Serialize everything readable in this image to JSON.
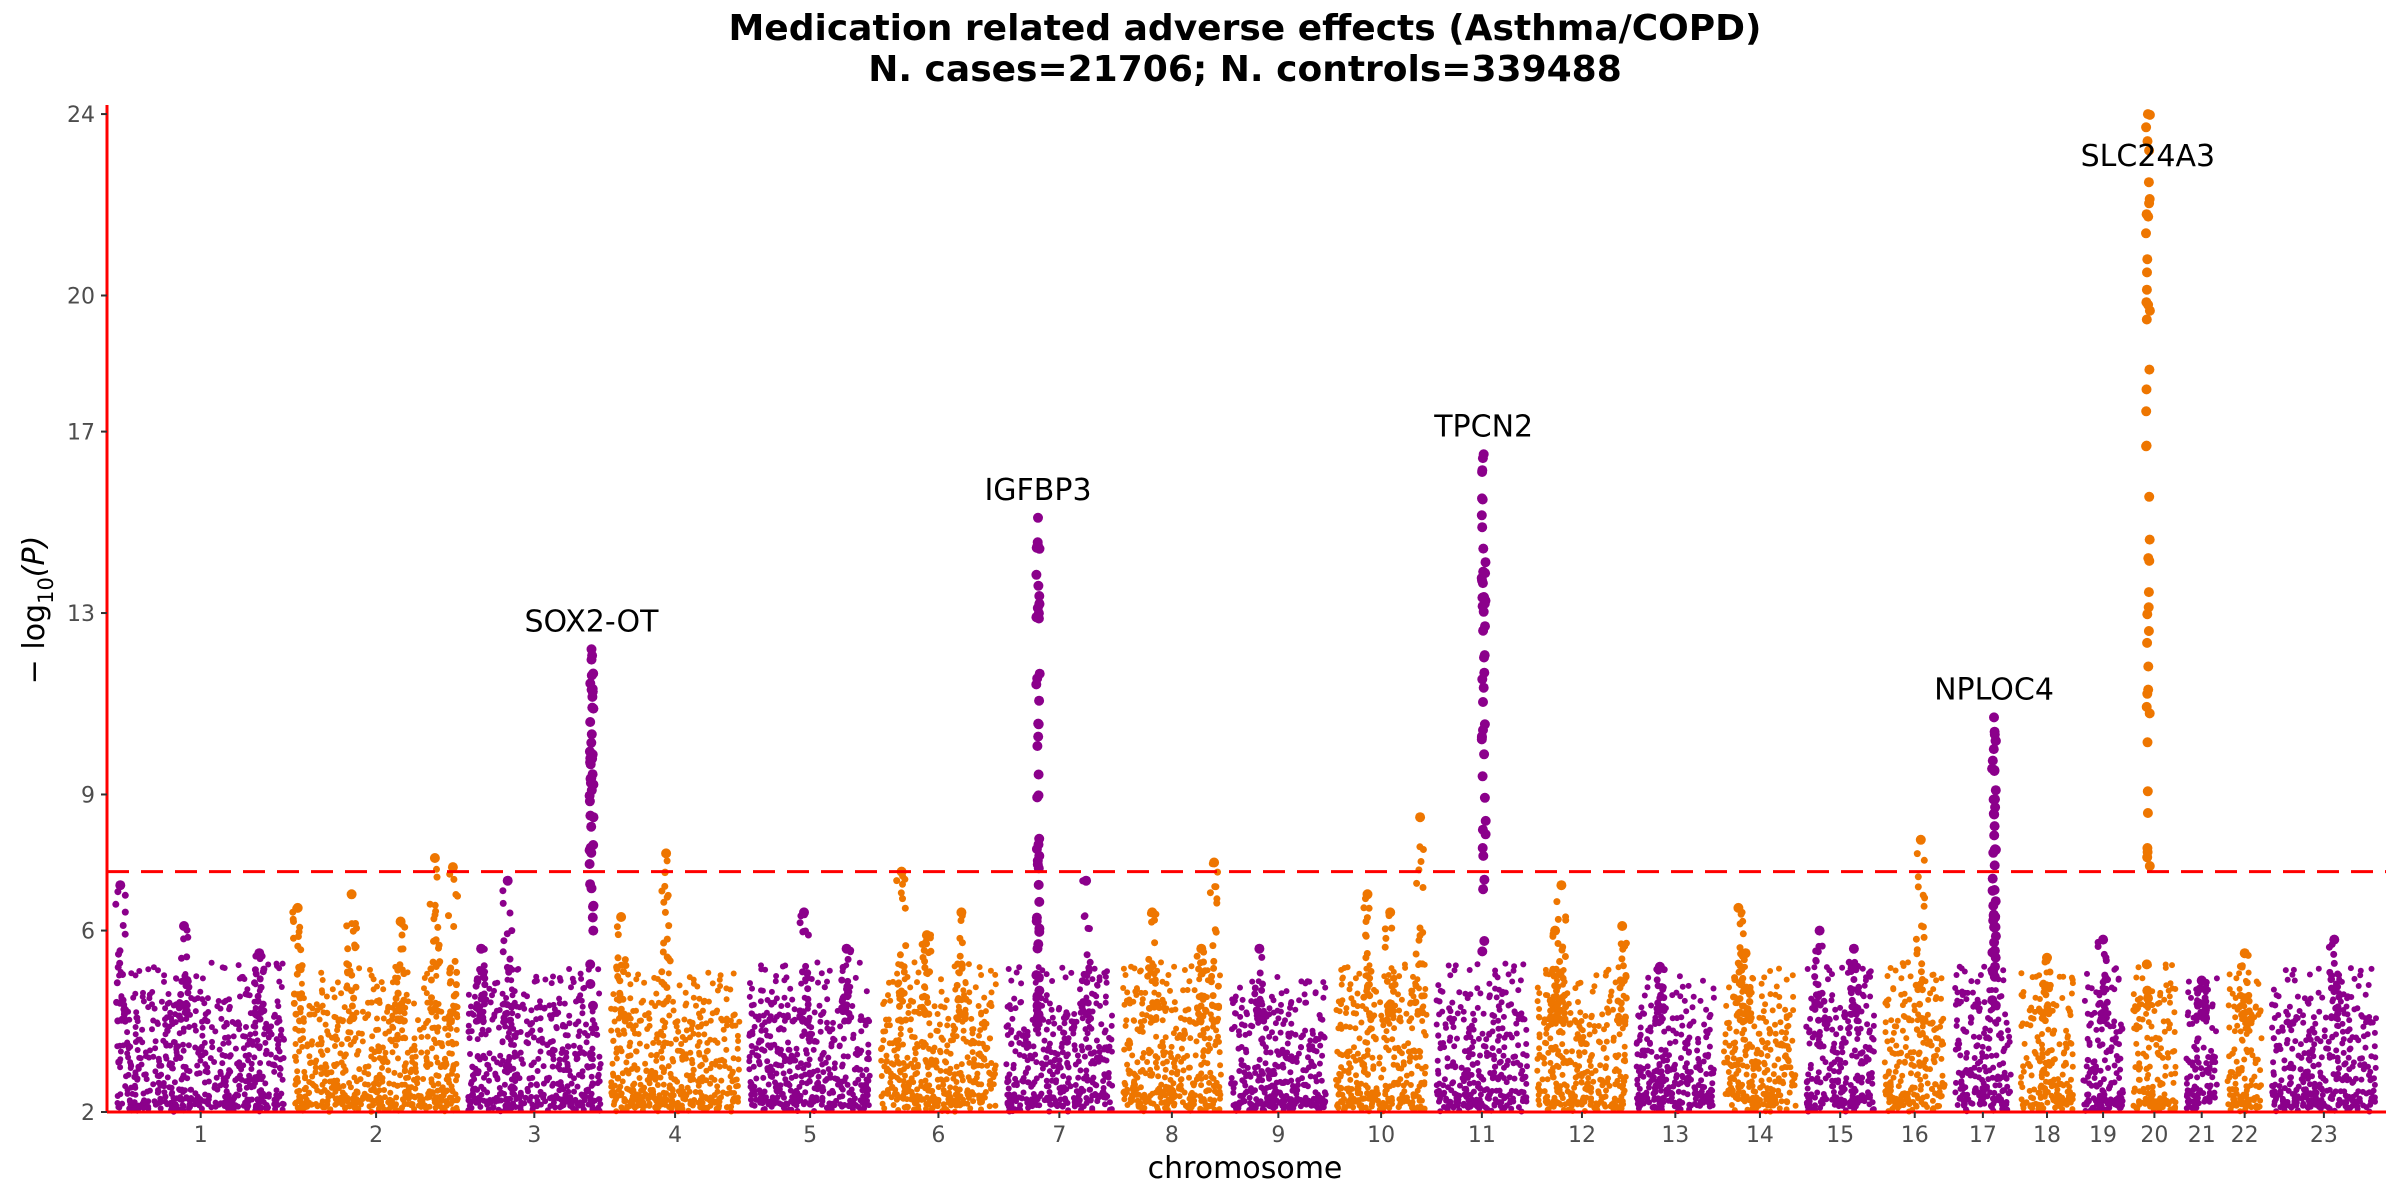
{
  "chart_data": {
    "type": "scatter",
    "subtype": "manhattan",
    "title": "Medication related adverse effects (Asthma/COPD)",
    "subtitle": "N. cases=21706; N. controls=339488",
    "xlabel": "chromosome",
    "ylabel_prefix": "− log",
    "ylabel_sub": "10",
    "ylabel_suffix": "(P)",
    "ylim": [
      2,
      24.2
    ],
    "yticks": [
      "2",
      "6",
      "9",
      "13",
      "17",
      "20",
      "24"
    ],
    "significance_line": 7.3,
    "significance_color": "#ff0000",
    "axis_color": "#ff0000",
    "colors": [
      "#8b008b",
      "#ee7600"
    ],
    "grid": false,
    "chromosomes": [
      {
        "label": "1",
        "size": 249,
        "base": 4.6
      },
      {
        "label": "2",
        "size": 243,
        "base": 4.5
      },
      {
        "label": "3",
        "size": 198,
        "base": 4.5
      },
      {
        "label": "4",
        "size": 191,
        "base": 4.4
      },
      {
        "label": "5",
        "size": 181,
        "base": 4.6
      },
      {
        "label": "6",
        "size": 171,
        "base": 4.6
      },
      {
        "label": "7",
        "size": 159,
        "base": 4.5
      },
      {
        "label": "8",
        "size": 146,
        "base": 4.6
      },
      {
        "label": "9",
        "size": 141,
        "base": 4.4
      },
      {
        "label": "10",
        "size": 135,
        "base": 4.6
      },
      {
        "label": "11",
        "size": 135,
        "base": 4.6
      },
      {
        "label": "12",
        "size": 133,
        "base": 4.5
      },
      {
        "label": "13",
        "size": 115,
        "base": 4.3
      },
      {
        "label": "14",
        "size": 107,
        "base": 4.5
      },
      {
        "label": "15",
        "size": 102,
        "base": 4.5
      },
      {
        "label": "16",
        "size": 90,
        "base": 4.6
      },
      {
        "label": "17",
        "size": 83,
        "base": 4.6
      },
      {
        "label": "18",
        "size": 78,
        "base": 4.5
      },
      {
        "label": "19",
        "size": 59,
        "base": 4.7
      },
      {
        "label": "20",
        "size": 64,
        "base": 4.6
      },
      {
        "label": "21",
        "size": 47,
        "base": 4.3
      },
      {
        "label": "22",
        "size": 51,
        "base": 4.5
      },
      {
        "label": "23",
        "size": 155,
        "base": 4.5
      }
    ],
    "peaks": [
      {
        "chr": "1",
        "pos": 0.02,
        "max": 7.0
      },
      {
        "chr": "1",
        "pos": 0.4,
        "max": 6.1
      },
      {
        "chr": "1",
        "pos": 0.85,
        "max": 5.5
      },
      {
        "chr": "2",
        "pos": 0.02,
        "max": 6.5
      },
      {
        "chr": "2",
        "pos": 0.35,
        "max": 6.8
      },
      {
        "chr": "2",
        "pos": 0.65,
        "max": 6.2
      },
      {
        "chr": "2",
        "pos": 0.86,
        "max": 7.6
      },
      {
        "chr": "2",
        "pos": 0.97,
        "max": 7.4
      },
      {
        "chr": "3",
        "pos": 0.1,
        "max": 5.6
      },
      {
        "chr": "3",
        "pos": 0.3,
        "max": 7.1
      },
      {
        "chr": "3",
        "pos": 0.93,
        "max": 12.2,
        "gene": "SOX2-OT"
      },
      {
        "chr": "4",
        "pos": 0.08,
        "max": 6.3
      },
      {
        "chr": "4",
        "pos": 0.43,
        "max": 7.7
      },
      {
        "chr": "5",
        "pos": 0.45,
        "max": 6.4
      },
      {
        "chr": "5",
        "pos": 0.8,
        "max": 5.6
      },
      {
        "chr": "6",
        "pos": 0.18,
        "max": 7.3
      },
      {
        "chr": "6",
        "pos": 0.4,
        "max": 5.9
      },
      {
        "chr": "6",
        "pos": 0.7,
        "max": 6.4
      },
      {
        "chr": "7",
        "pos": 0.3,
        "max": 15.1,
        "gene": "IGFBP3"
      },
      {
        "chr": "7",
        "pos": 0.75,
        "max": 7.1
      },
      {
        "chr": "8",
        "pos": 0.3,
        "max": 6.4
      },
      {
        "chr": "8",
        "pos": 0.8,
        "max": 5.6
      },
      {
        "chr": "8",
        "pos": 0.93,
        "max": 7.5
      },
      {
        "chr": "9",
        "pos": 0.3,
        "max": 5.6
      },
      {
        "chr": "10",
        "pos": 0.35,
        "max": 6.8
      },
      {
        "chr": "10",
        "pos": 0.6,
        "max": 6.4
      },
      {
        "chr": "10",
        "pos": 0.93,
        "max": 8.5
      },
      {
        "chr": "11",
        "pos": 0.52,
        "max": 16.5,
        "gene": "TPCN2"
      },
      {
        "chr": "12",
        "pos": 0.2,
        "max": 6.0
      },
      {
        "chr": "12",
        "pos": 0.27,
        "max": 7.0
      },
      {
        "chr": "12",
        "pos": 0.95,
        "max": 6.1
      },
      {
        "chr": "13",
        "pos": 0.3,
        "max": 5.2
      },
      {
        "chr": "14",
        "pos": 0.3,
        "max": 5.5
      },
      {
        "chr": "14",
        "pos": 0.2,
        "max": 6.5
      },
      {
        "chr": "15",
        "pos": 0.2,
        "max": 6.0
      },
      {
        "chr": "15",
        "pos": 0.7,
        "max": 5.6
      },
      {
        "chr": "16",
        "pos": 0.6,
        "max": 8.0
      },
      {
        "chr": "17",
        "pos": 0.7,
        "max": 10.7,
        "gene": "NPLOC4"
      },
      {
        "chr": "18",
        "pos": 0.5,
        "max": 5.4
      },
      {
        "chr": "19",
        "pos": 0.5,
        "max": 5.8
      },
      {
        "chr": "20",
        "pos": 0.35,
        "max": 24.0,
        "gene": "SLC24A3"
      },
      {
        "chr": "21",
        "pos": 0.5,
        "max": 4.9
      },
      {
        "chr": "22",
        "pos": 0.5,
        "max": 5.5
      },
      {
        "chr": "23",
        "pos": 0.6,
        "max": 5.8
      }
    ]
  }
}
